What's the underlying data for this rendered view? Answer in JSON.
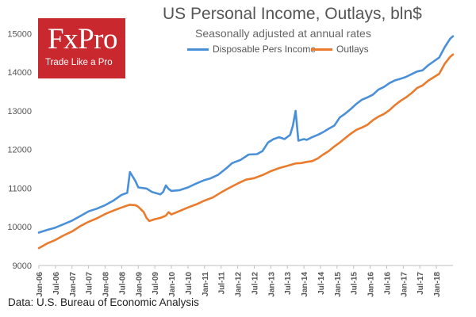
{
  "branding": {
    "name": "FxPro",
    "tagline": "Trade Like a Pro"
  },
  "source_note": "Data: U.S. Bureau of Economic Analysis",
  "colors": {
    "income": "#4a90d9",
    "outlays": "#ea7b2c",
    "axis_text": "#555555",
    "logo_bg": "#c8282e"
  },
  "chart_data": {
    "type": "line",
    "title": "US Personal Income, Outlays, bln$",
    "subtitle": "Seasonally adjusted at annual rates",
    "xlabel": "",
    "ylabel": "",
    "ylim": [
      9000,
      15500
    ],
    "yticks": [
      9000,
      10000,
      11000,
      12000,
      13000,
      14000,
      15000
    ],
    "x_tick_labels": [
      "Jan-06",
      "Jul-06",
      "Jan-07",
      "Jul-07",
      "Jan-08",
      "Jul-08",
      "Jan-09",
      "Jul-09",
      "Jan-10",
      "Jul-10",
      "Jan-11",
      "Jul-11",
      "Jan-12",
      "Jul-12",
      "Jan-13",
      "Jul-13",
      "Jan-14",
      "Jul-14",
      "Jan-15",
      "Jul-15",
      "Jan-16",
      "Jul-16",
      "Jan-17",
      "Jul-17",
      "Jan-18"
    ],
    "x_start_month": "Jan-06",
    "x_months_total": 150,
    "legend_position": "top-center",
    "grid": false,
    "series": [
      {
        "name": "Disposable Pers Income",
        "color": "#4a90d9",
        "points": [
          [
            0,
            9850
          ],
          [
            3,
            9920
          ],
          [
            6,
            9980
          ],
          [
            9,
            10070
          ],
          [
            12,
            10160
          ],
          [
            15,
            10280
          ],
          [
            18,
            10400
          ],
          [
            21,
            10470
          ],
          [
            24,
            10560
          ],
          [
            27,
            10680
          ],
          [
            30,
            10830
          ],
          [
            32,
            10880
          ],
          [
            33,
            11420
          ],
          [
            35,
            11180
          ],
          [
            36,
            11020
          ],
          [
            39,
            10990
          ],
          [
            41,
            10900
          ],
          [
            43,
            10860
          ],
          [
            44,
            10840
          ],
          [
            45,
            10900
          ],
          [
            46,
            11070
          ],
          [
            47,
            10980
          ],
          [
            48,
            10930
          ],
          [
            51,
            10950
          ],
          [
            54,
            11020
          ],
          [
            57,
            11120
          ],
          [
            60,
            11210
          ],
          [
            62,
            11250
          ],
          [
            65,
            11350
          ],
          [
            68,
            11520
          ],
          [
            70,
            11650
          ],
          [
            73,
            11730
          ],
          [
            76,
            11870
          ],
          [
            79,
            11880
          ],
          [
            81,
            11960
          ],
          [
            83,
            12180
          ],
          [
            85,
            12270
          ],
          [
            87,
            12320
          ],
          [
            89,
            12270
          ],
          [
            91,
            12380
          ],
          [
            92,
            12620
          ],
          [
            93,
            13000
          ],
          [
            94,
            12230
          ],
          [
            96,
            12270
          ],
          [
            97,
            12250
          ],
          [
            99,
            12320
          ],
          [
            101,
            12380
          ],
          [
            103,
            12450
          ],
          [
            105,
            12540
          ],
          [
            107,
            12620
          ],
          [
            109,
            12830
          ],
          [
            111,
            12930
          ],
          [
            113,
            13050
          ],
          [
            115,
            13180
          ],
          [
            117,
            13290
          ],
          [
            119,
            13350
          ],
          [
            121,
            13420
          ],
          [
            123,
            13550
          ],
          [
            125,
            13620
          ],
          [
            127,
            13720
          ],
          [
            129,
            13790
          ],
          [
            131,
            13830
          ],
          [
            133,
            13880
          ],
          [
            135,
            13950
          ],
          [
            137,
            14020
          ],
          [
            139,
            14050
          ],
          [
            141,
            14180
          ],
          [
            143,
            14280
          ],
          [
            145,
            14380
          ],
          [
            147,
            14650
          ],
          [
            149,
            14870
          ],
          [
            150,
            14930
          ]
        ]
      },
      {
        "name": "Outlays",
        "color": "#ea7b2c",
        "points": [
          [
            0,
            9450
          ],
          [
            3,
            9570
          ],
          [
            6,
            9660
          ],
          [
            9,
            9780
          ],
          [
            12,
            9880
          ],
          [
            15,
            10020
          ],
          [
            18,
            10130
          ],
          [
            21,
            10220
          ],
          [
            24,
            10330
          ],
          [
            27,
            10420
          ],
          [
            30,
            10500
          ],
          [
            32,
            10550
          ],
          [
            33,
            10570
          ],
          [
            35,
            10560
          ],
          [
            36,
            10520
          ],
          [
            38,
            10380
          ],
          [
            39,
            10230
          ],
          [
            40,
            10150
          ],
          [
            42,
            10200
          ],
          [
            44,
            10230
          ],
          [
            46,
            10290
          ],
          [
            47,
            10380
          ],
          [
            48,
            10320
          ],
          [
            51,
            10410
          ],
          [
            54,
            10500
          ],
          [
            57,
            10580
          ],
          [
            60,
            10680
          ],
          [
            63,
            10760
          ],
          [
            66,
            10890
          ],
          [
            69,
            11010
          ],
          [
            72,
            11120
          ],
          [
            75,
            11220
          ],
          [
            78,
            11260
          ],
          [
            81,
            11340
          ],
          [
            84,
            11440
          ],
          [
            87,
            11520
          ],
          [
            90,
            11580
          ],
          [
            93,
            11640
          ],
          [
            95,
            11650
          ],
          [
            97,
            11680
          ],
          [
            99,
            11700
          ],
          [
            101,
            11770
          ],
          [
            103,
            11870
          ],
          [
            105,
            11960
          ],
          [
            107,
            12080
          ],
          [
            109,
            12180
          ],
          [
            111,
            12300
          ],
          [
            113,
            12410
          ],
          [
            115,
            12510
          ],
          [
            117,
            12570
          ],
          [
            119,
            12640
          ],
          [
            121,
            12760
          ],
          [
            123,
            12850
          ],
          [
            125,
            12920
          ],
          [
            127,
            13020
          ],
          [
            129,
            13150
          ],
          [
            131,
            13260
          ],
          [
            133,
            13350
          ],
          [
            135,
            13460
          ],
          [
            137,
            13590
          ],
          [
            139,
            13660
          ],
          [
            141,
            13780
          ],
          [
            143,
            13870
          ],
          [
            145,
            13960
          ],
          [
            147,
            14220
          ],
          [
            149,
            14400
          ],
          [
            150,
            14460
          ]
        ]
      }
    ]
  }
}
